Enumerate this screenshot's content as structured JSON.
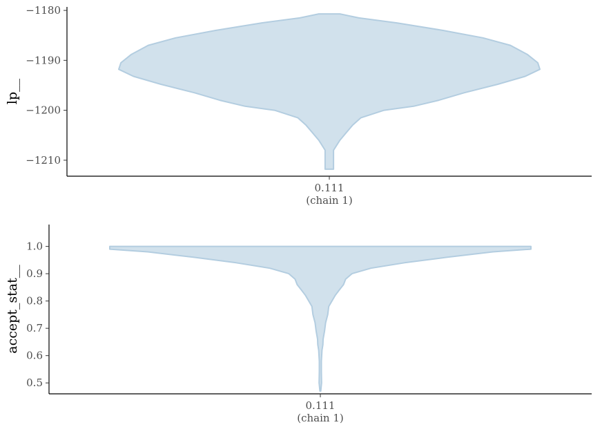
{
  "chart_data": [
    {
      "type": "violin",
      "ylabel": "lp__",
      "categories": [
        "0.111"
      ],
      "category_sublabels": [
        "(chain 1)"
      ],
      "yticks": [
        -1180,
        -1190,
        -1200,
        -1210
      ],
      "ylim": [
        -1213.2,
        -1179.3
      ],
      "violin": {
        "y_min": -1211.8,
        "y_max": -1180.7,
        "profile": [
          {
            "y": -1180.7,
            "w": 0.05
          },
          {
            "y": -1181.5,
            "w": 0.14
          },
          {
            "y": -1182.5,
            "w": 0.32
          },
          {
            "y": -1184.0,
            "w": 0.54
          },
          {
            "y": -1185.5,
            "w": 0.73
          },
          {
            "y": -1187.0,
            "w": 0.86
          },
          {
            "y": -1188.8,
            "w": 0.94
          },
          {
            "y": -1190.5,
            "w": 0.99
          },
          {
            "y": -1191.8,
            "w": 1.0
          },
          {
            "y": -1193.2,
            "w": 0.93
          },
          {
            "y": -1194.8,
            "w": 0.8
          },
          {
            "y": -1196.5,
            "w": 0.64
          },
          {
            "y": -1198.0,
            "w": 0.52
          },
          {
            "y": -1199.2,
            "w": 0.4
          },
          {
            "y": -1200.0,
            "w": 0.26
          },
          {
            "y": -1201.5,
            "w": 0.15
          },
          {
            "y": -1203.0,
            "w": 0.11
          },
          {
            "y": -1204.5,
            "w": 0.08
          },
          {
            "y": -1206.0,
            "w": 0.05
          },
          {
            "y": -1208.0,
            "w": 0.02
          },
          {
            "y": -1210.0,
            "w": 0.02
          },
          {
            "y": -1211.8,
            "w": 0.02
          }
        ]
      }
    },
    {
      "type": "violin",
      "ylabel": "accept_stat__",
      "categories": [
        "0.111"
      ],
      "category_sublabels": [
        "(chain 1)"
      ],
      "yticks": [
        "1.0",
        "0.9",
        "0.8",
        "0.7",
        "0.6",
        "0.5"
      ],
      "ylim": [
        0.46,
        1.08
      ],
      "violin": {
        "y_min": 0.47,
        "y_max": 1.0,
        "profile": [
          {
            "y": 1.0,
            "w": 1.0
          },
          {
            "y": 0.99,
            "w": 1.0
          },
          {
            "y": 0.98,
            "w": 0.82
          },
          {
            "y": 0.96,
            "w": 0.6
          },
          {
            "y": 0.94,
            "w": 0.4
          },
          {
            "y": 0.92,
            "w": 0.24
          },
          {
            "y": 0.9,
            "w": 0.15
          },
          {
            "y": 0.88,
            "w": 0.12
          },
          {
            "y": 0.86,
            "w": 0.11
          },
          {
            "y": 0.84,
            "w": 0.09
          },
          {
            "y": 0.82,
            "w": 0.07
          },
          {
            "y": 0.8,
            "w": 0.055
          },
          {
            "y": 0.78,
            "w": 0.04
          },
          {
            "y": 0.75,
            "w": 0.035
          },
          {
            "y": 0.72,
            "w": 0.025
          },
          {
            "y": 0.69,
            "w": 0.02
          },
          {
            "y": 0.66,
            "w": 0.013
          },
          {
            "y": 0.64,
            "w": 0.012
          },
          {
            "y": 0.62,
            "w": 0.008
          },
          {
            "y": 0.58,
            "w": 0.005
          },
          {
            "y": 0.54,
            "w": 0.005
          },
          {
            "y": 0.5,
            "w": 0.006
          },
          {
            "y": 0.47,
            "w": 0.002
          }
        ]
      }
    }
  ]
}
